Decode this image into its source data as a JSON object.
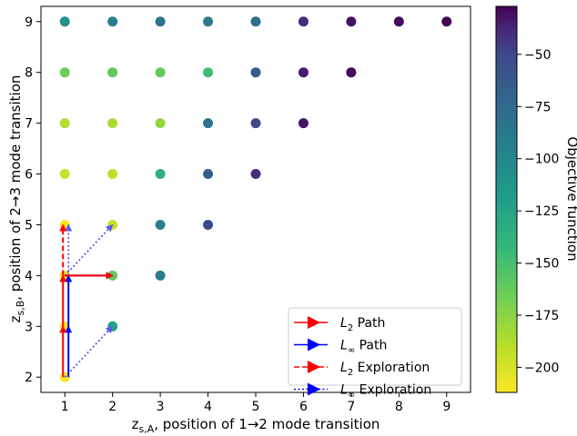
{
  "chart_data": {
    "type": "scatter",
    "xlabel": "z_{s,A}, position of 1→2 mode transition",
    "ylabel": "z_{s,B}, position of 2→3 mode transition",
    "xlabel_parts": {
      "main": "z",
      "sub": "s,A",
      "rest": ", position of 1→2 mode transition"
    },
    "ylabel_parts": {
      "main": "z",
      "sub": "s,B",
      "rest": ", position of 2→3 mode transition"
    },
    "xlim": [
      0.5,
      9.5
    ],
    "ylim": [
      1.7,
      9.3
    ],
    "xticks": [
      1,
      2,
      3,
      4,
      5,
      6,
      7,
      8,
      9
    ],
    "yticks": [
      2,
      3,
      4,
      5,
      6,
      7,
      8,
      9
    ],
    "colorbar": {
      "label": "Objective function",
      "range": [
        -212,
        -27
      ],
      "ticks": [
        -50,
        -75,
        -100,
        -125,
        -150,
        -175,
        -200
      ],
      "tick_labels": [
        "−50",
        "−75",
        "−100",
        "−125",
        "−150",
        "−175",
        "−200"
      ],
      "colormap": "viridis (yellow = low, purple = high)"
    },
    "points": [
      {
        "x": 1,
        "y": 2,
        "value": -210
      },
      {
        "x": 1,
        "y": 3,
        "value": -210
      },
      {
        "x": 1,
        "y": 4,
        "value": -210
      },
      {
        "x": 1,
        "y": 5,
        "value": -212
      },
      {
        "x": 1,
        "y": 6,
        "value": -195
      },
      {
        "x": 1,
        "y": 7,
        "value": -188
      },
      {
        "x": 1,
        "y": 8,
        "value": -165
      },
      {
        "x": 1,
        "y": 9,
        "value": -110
      },
      {
        "x": 2,
        "y": 3,
        "value": -125
      },
      {
        "x": 2,
        "y": 4,
        "value": -160
      },
      {
        "x": 2,
        "y": 5,
        "value": -195
      },
      {
        "x": 2,
        "y": 6,
        "value": -192
      },
      {
        "x": 2,
        "y": 7,
        "value": -185
      },
      {
        "x": 2,
        "y": 8,
        "value": -160
      },
      {
        "x": 2,
        "y": 9,
        "value": -95
      },
      {
        "x": 3,
        "y": 4,
        "value": -90
      },
      {
        "x": 3,
        "y": 5,
        "value": -95
      },
      {
        "x": 3,
        "y": 6,
        "value": -135
      },
      {
        "x": 3,
        "y": 7,
        "value": -178
      },
      {
        "x": 3,
        "y": 8,
        "value": -162
      },
      {
        "x": 3,
        "y": 9,
        "value": -85
      },
      {
        "x": 4,
        "y": 5,
        "value": -50
      },
      {
        "x": 4,
        "y": 6,
        "value": -65
      },
      {
        "x": 4,
        "y": 7,
        "value": -85
      },
      {
        "x": 4,
        "y": 8,
        "value": -148
      },
      {
        "x": 4,
        "y": 9,
        "value": -90
      },
      {
        "x": 5,
        "y": 6,
        "value": -40
      },
      {
        "x": 5,
        "y": 7,
        "value": -50
      },
      {
        "x": 5,
        "y": 8,
        "value": -65
      },
      {
        "x": 5,
        "y": 9,
        "value": -80
      },
      {
        "x": 6,
        "y": 7,
        "value": -32
      },
      {
        "x": 6,
        "y": 8,
        "value": -35
      },
      {
        "x": 6,
        "y": 9,
        "value": -40
      },
      {
        "x": 7,
        "y": 8,
        "value": -30
      },
      {
        "x": 7,
        "y": 9,
        "value": -32
      },
      {
        "x": 8,
        "y": 9,
        "value": -30
      },
      {
        "x": 9,
        "y": 9,
        "value": -28
      }
    ],
    "paths": {
      "L2_path": [
        [
          1,
          2
        ],
        [
          1,
          3
        ],
        [
          1,
          4
        ],
        [
          2,
          4
        ]
      ],
      "Linf_path": [
        [
          1,
          2
        ],
        [
          1,
          3
        ],
        [
          1,
          4
        ],
        [
          2,
          4
        ]
      ],
      "L2_exploration": [
        [
          [
            1,
            4
          ],
          [
            1,
            5
          ]
        ]
      ],
      "Linf_exploration": [
        [
          [
            1,
            2
          ],
          [
            2,
            3
          ]
        ],
        [
          [
            1,
            4
          ],
          [
            2,
            5
          ]
        ],
        [
          [
            1,
            4
          ],
          [
            1,
            5
          ]
        ]
      ]
    },
    "legend": {
      "position": "lower-right",
      "entries": [
        {
          "prefix": "L",
          "sub": "2",
          "suffix": " Path",
          "color": "#ff0000",
          "style": "solid"
        },
        {
          "prefix": "L",
          "sub": "∞",
          "suffix": " Path",
          "color": "#0000ff",
          "style": "solid"
        },
        {
          "prefix": "L",
          "sub": "2",
          "suffix": " Exploration",
          "color": "#ff0000",
          "style": "dashed"
        },
        {
          "prefix": "L",
          "sub": "∞",
          "suffix": " Exploration",
          "color": "#0000ff",
          "style": "dotted"
        }
      ]
    },
    "colors": {
      "l2": "#ff0000",
      "linf": "#0000ff",
      "linf_explore": "#5b5bf0"
    }
  }
}
